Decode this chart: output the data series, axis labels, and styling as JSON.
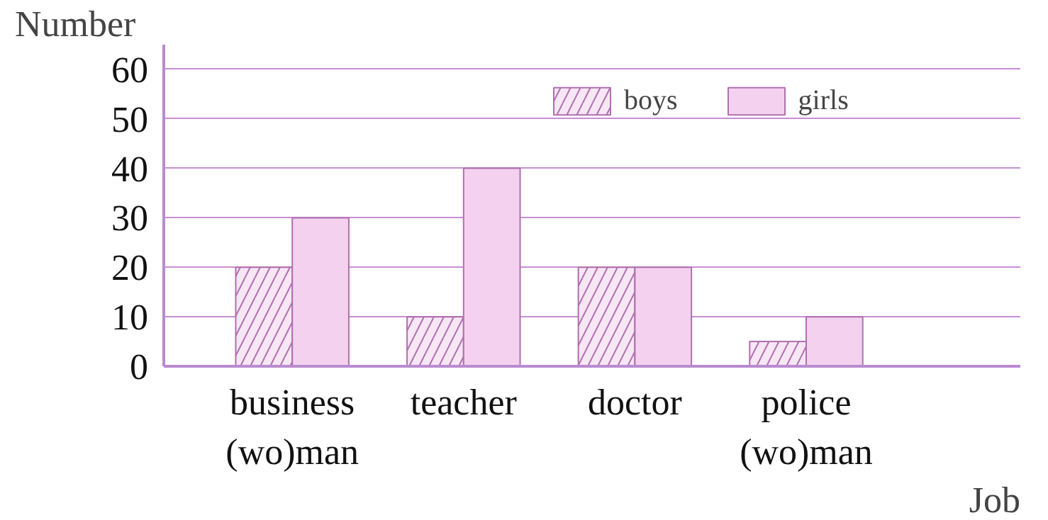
{
  "chart_data": {
    "type": "bar",
    "categories": [
      "business\n(wo)man",
      "teacher",
      "doctor",
      "police\n(wo)man"
    ],
    "series": [
      {
        "name": "boys",
        "color": "#f7e6f4",
        "values": [
          20,
          10,
          20,
          5
        ]
      },
      {
        "name": "girls",
        "color": "#f4d2ef",
        "values": [
          30,
          40,
          20,
          10
        ]
      }
    ],
    "xlabel": "Job",
    "ylabel": "Number",
    "ylim": [
      0,
      65
    ],
    "yticks": [
      0,
      10,
      20,
      30,
      40,
      50,
      60
    ],
    "grid": "y",
    "legend": "top right"
  }
}
